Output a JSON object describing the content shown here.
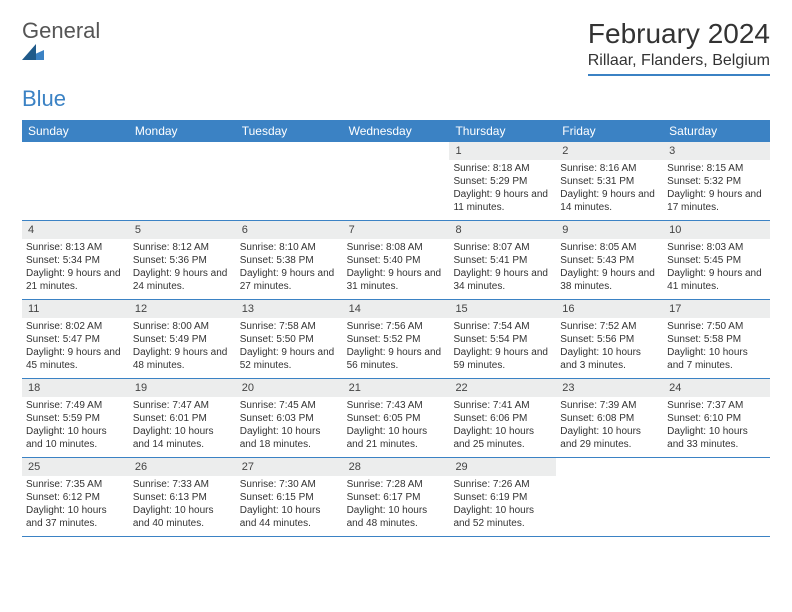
{
  "logo": {
    "text1": "General",
    "text2": "Blue"
  },
  "title": "February 2024",
  "location": "Rillaar, Flanders, Belgium",
  "colors": {
    "accent": "#3b82c4",
    "header_bg": "#3b82c4",
    "header_text": "#ffffff",
    "daynum_bg": "#eceded",
    "text": "#333333",
    "background": "#ffffff"
  },
  "day_names": [
    "Sunday",
    "Monday",
    "Tuesday",
    "Wednesday",
    "Thursday",
    "Friday",
    "Saturday"
  ],
  "weeks": [
    [
      {
        "n": "",
        "sr": "",
        "ss": "",
        "dl": ""
      },
      {
        "n": "",
        "sr": "",
        "ss": "",
        "dl": ""
      },
      {
        "n": "",
        "sr": "",
        "ss": "",
        "dl": ""
      },
      {
        "n": "",
        "sr": "",
        "ss": "",
        "dl": ""
      },
      {
        "n": "1",
        "sr": "Sunrise: 8:18 AM",
        "ss": "Sunset: 5:29 PM",
        "dl": "Daylight: 9 hours and 11 minutes."
      },
      {
        "n": "2",
        "sr": "Sunrise: 8:16 AM",
        "ss": "Sunset: 5:31 PM",
        "dl": "Daylight: 9 hours and 14 minutes."
      },
      {
        "n": "3",
        "sr": "Sunrise: 8:15 AM",
        "ss": "Sunset: 5:32 PM",
        "dl": "Daylight: 9 hours and 17 minutes."
      }
    ],
    [
      {
        "n": "4",
        "sr": "Sunrise: 8:13 AM",
        "ss": "Sunset: 5:34 PM",
        "dl": "Daylight: 9 hours and 21 minutes."
      },
      {
        "n": "5",
        "sr": "Sunrise: 8:12 AM",
        "ss": "Sunset: 5:36 PM",
        "dl": "Daylight: 9 hours and 24 minutes."
      },
      {
        "n": "6",
        "sr": "Sunrise: 8:10 AM",
        "ss": "Sunset: 5:38 PM",
        "dl": "Daylight: 9 hours and 27 minutes."
      },
      {
        "n": "7",
        "sr": "Sunrise: 8:08 AM",
        "ss": "Sunset: 5:40 PM",
        "dl": "Daylight: 9 hours and 31 minutes."
      },
      {
        "n": "8",
        "sr": "Sunrise: 8:07 AM",
        "ss": "Sunset: 5:41 PM",
        "dl": "Daylight: 9 hours and 34 minutes."
      },
      {
        "n": "9",
        "sr": "Sunrise: 8:05 AM",
        "ss": "Sunset: 5:43 PM",
        "dl": "Daylight: 9 hours and 38 minutes."
      },
      {
        "n": "10",
        "sr": "Sunrise: 8:03 AM",
        "ss": "Sunset: 5:45 PM",
        "dl": "Daylight: 9 hours and 41 minutes."
      }
    ],
    [
      {
        "n": "11",
        "sr": "Sunrise: 8:02 AM",
        "ss": "Sunset: 5:47 PM",
        "dl": "Daylight: 9 hours and 45 minutes."
      },
      {
        "n": "12",
        "sr": "Sunrise: 8:00 AM",
        "ss": "Sunset: 5:49 PM",
        "dl": "Daylight: 9 hours and 48 minutes."
      },
      {
        "n": "13",
        "sr": "Sunrise: 7:58 AM",
        "ss": "Sunset: 5:50 PM",
        "dl": "Daylight: 9 hours and 52 minutes."
      },
      {
        "n": "14",
        "sr": "Sunrise: 7:56 AM",
        "ss": "Sunset: 5:52 PM",
        "dl": "Daylight: 9 hours and 56 minutes."
      },
      {
        "n": "15",
        "sr": "Sunrise: 7:54 AM",
        "ss": "Sunset: 5:54 PM",
        "dl": "Daylight: 9 hours and 59 minutes."
      },
      {
        "n": "16",
        "sr": "Sunrise: 7:52 AM",
        "ss": "Sunset: 5:56 PM",
        "dl": "Daylight: 10 hours and 3 minutes."
      },
      {
        "n": "17",
        "sr": "Sunrise: 7:50 AM",
        "ss": "Sunset: 5:58 PM",
        "dl": "Daylight: 10 hours and 7 minutes."
      }
    ],
    [
      {
        "n": "18",
        "sr": "Sunrise: 7:49 AM",
        "ss": "Sunset: 5:59 PM",
        "dl": "Daylight: 10 hours and 10 minutes."
      },
      {
        "n": "19",
        "sr": "Sunrise: 7:47 AM",
        "ss": "Sunset: 6:01 PM",
        "dl": "Daylight: 10 hours and 14 minutes."
      },
      {
        "n": "20",
        "sr": "Sunrise: 7:45 AM",
        "ss": "Sunset: 6:03 PM",
        "dl": "Daylight: 10 hours and 18 minutes."
      },
      {
        "n": "21",
        "sr": "Sunrise: 7:43 AM",
        "ss": "Sunset: 6:05 PM",
        "dl": "Daylight: 10 hours and 21 minutes."
      },
      {
        "n": "22",
        "sr": "Sunrise: 7:41 AM",
        "ss": "Sunset: 6:06 PM",
        "dl": "Daylight: 10 hours and 25 minutes."
      },
      {
        "n": "23",
        "sr": "Sunrise: 7:39 AM",
        "ss": "Sunset: 6:08 PM",
        "dl": "Daylight: 10 hours and 29 minutes."
      },
      {
        "n": "24",
        "sr": "Sunrise: 7:37 AM",
        "ss": "Sunset: 6:10 PM",
        "dl": "Daylight: 10 hours and 33 minutes."
      }
    ],
    [
      {
        "n": "25",
        "sr": "Sunrise: 7:35 AM",
        "ss": "Sunset: 6:12 PM",
        "dl": "Daylight: 10 hours and 37 minutes."
      },
      {
        "n": "26",
        "sr": "Sunrise: 7:33 AM",
        "ss": "Sunset: 6:13 PM",
        "dl": "Daylight: 10 hours and 40 minutes."
      },
      {
        "n": "27",
        "sr": "Sunrise: 7:30 AM",
        "ss": "Sunset: 6:15 PM",
        "dl": "Daylight: 10 hours and 44 minutes."
      },
      {
        "n": "28",
        "sr": "Sunrise: 7:28 AM",
        "ss": "Sunset: 6:17 PM",
        "dl": "Daylight: 10 hours and 48 minutes."
      },
      {
        "n": "29",
        "sr": "Sunrise: 7:26 AM",
        "ss": "Sunset: 6:19 PM",
        "dl": "Daylight: 10 hours and 52 minutes."
      },
      {
        "n": "",
        "sr": "",
        "ss": "",
        "dl": ""
      },
      {
        "n": "",
        "sr": "",
        "ss": "",
        "dl": ""
      }
    ]
  ]
}
